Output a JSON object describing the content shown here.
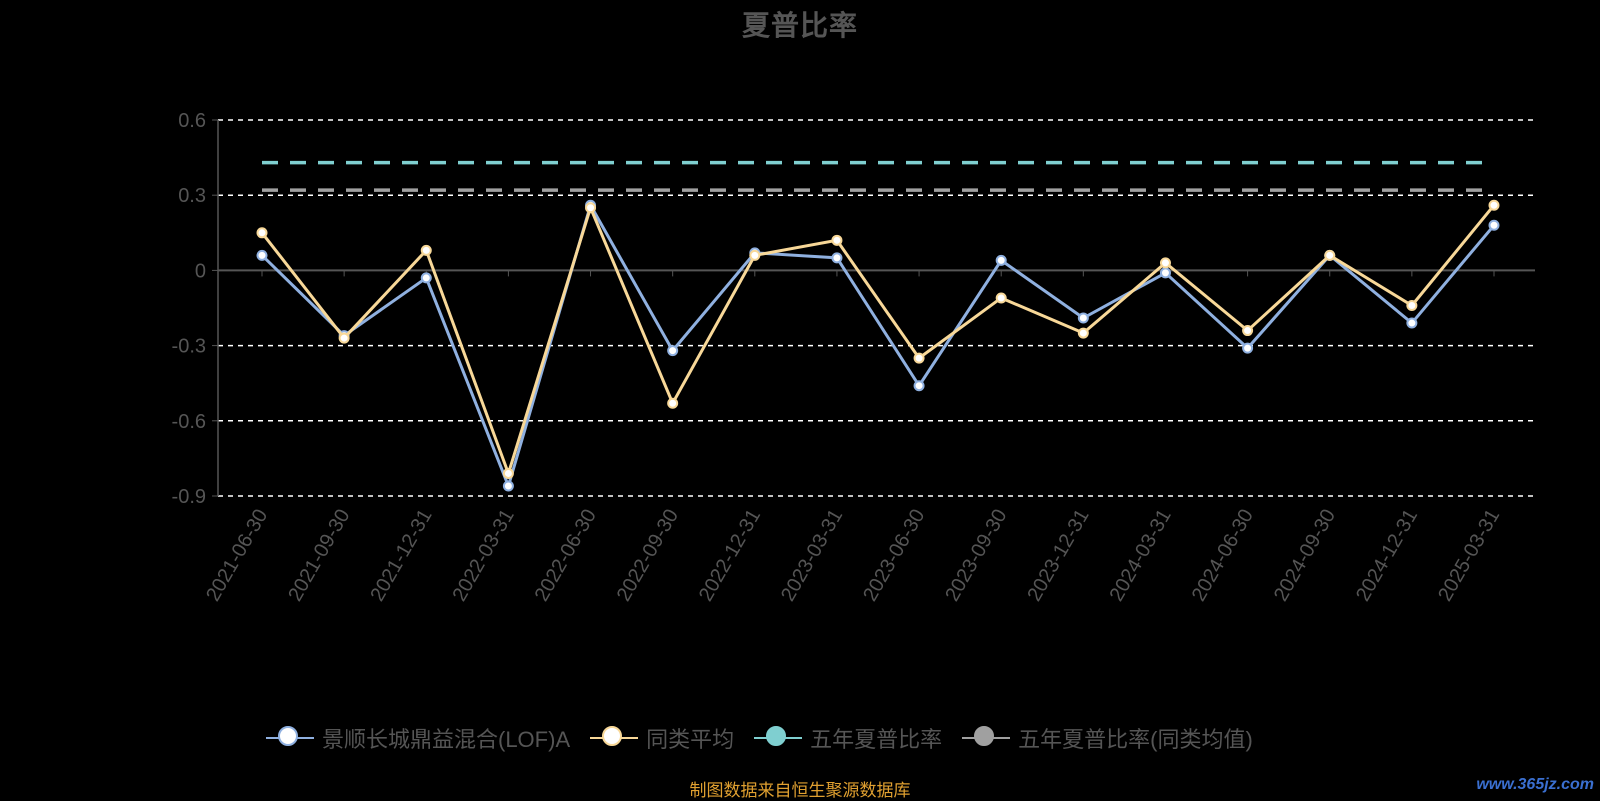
{
  "chart_data": {
    "type": "line",
    "title": "夏普比率",
    "xlabel": "",
    "ylabel": "",
    "categories": [
      "2021-06-30",
      "2021-09-30",
      "2021-12-31",
      "2022-03-31",
      "2022-06-30",
      "2022-09-30",
      "2022-12-31",
      "2023-03-31",
      "2023-06-30",
      "2023-09-30",
      "2023-12-31",
      "2024-03-31",
      "2024-06-30",
      "2024-09-30",
      "2024-12-31",
      "2025-03-31"
    ],
    "ylim": [
      -0.9,
      0.6
    ],
    "yticks": [
      "0.6",
      "0.3",
      "0",
      "-0.3",
      "-0.6",
      "-0.9"
    ],
    "ytick_values": [
      0.6,
      0.3,
      0,
      -0.3,
      -0.6,
      -0.9
    ],
    "grid": true,
    "legend_position": "bottom",
    "series": [
      {
        "name": "景顺长城鼎益混合(LOF)A",
        "color": "#8fb0e0",
        "style": "solid",
        "values": [
          0.06,
          -0.26,
          -0.03,
          -0.86,
          0.26,
          -0.32,
          0.07,
          0.05,
          -0.46,
          0.04,
          -0.19,
          -0.01,
          -0.31,
          0.06,
          -0.21,
          0.18
        ]
      },
      {
        "name": "同类平均",
        "color": "#f8d898",
        "style": "solid",
        "values": [
          0.15,
          -0.27,
          0.08,
          -0.81,
          0.25,
          -0.53,
          0.06,
          0.12,
          -0.35,
          -0.11,
          -0.25,
          0.03,
          -0.24,
          0.06,
          -0.14,
          0.26
        ]
      },
      {
        "name": "五年夏普比率",
        "color": "#7fcfd0",
        "style": "dashed",
        "values": [
          0.43,
          0.43,
          0.43,
          0.43,
          0.43,
          0.43,
          0.43,
          0.43,
          0.43,
          0.43,
          0.43,
          0.43,
          0.43,
          0.43,
          0.43,
          0.43
        ]
      },
      {
        "name": "五年夏普比率(同类均值)",
        "color": "#a0a0a0",
        "style": "dashed",
        "values": [
          0.32,
          0.32,
          0.32,
          0.32,
          0.32,
          0.32,
          0.32,
          0.32,
          0.32,
          0.32,
          0.32,
          0.32,
          0.32,
          0.32,
          0.32,
          0.32
        ]
      }
    ]
  },
  "legend": {
    "items": [
      {
        "label": "景顺长城鼎益混合(LOF)A",
        "color": "#8fb0e0",
        "dot_fill": "#ffffff"
      },
      {
        "label": "同类平均",
        "color": "#f8d898",
        "dot_fill": "#ffffff"
      },
      {
        "label": "五年夏普比率",
        "color": "#7fcfd0",
        "dot_fill": "#7fcfd0"
      },
      {
        "label": "五年夏普比率(同类均值)",
        "color": "#a0a0a0",
        "dot_fill": "#a0a0a0"
      }
    ]
  },
  "footer": {
    "source_note": "制图数据来自恒生聚源数据库",
    "watermark": "www.365jz.com"
  }
}
